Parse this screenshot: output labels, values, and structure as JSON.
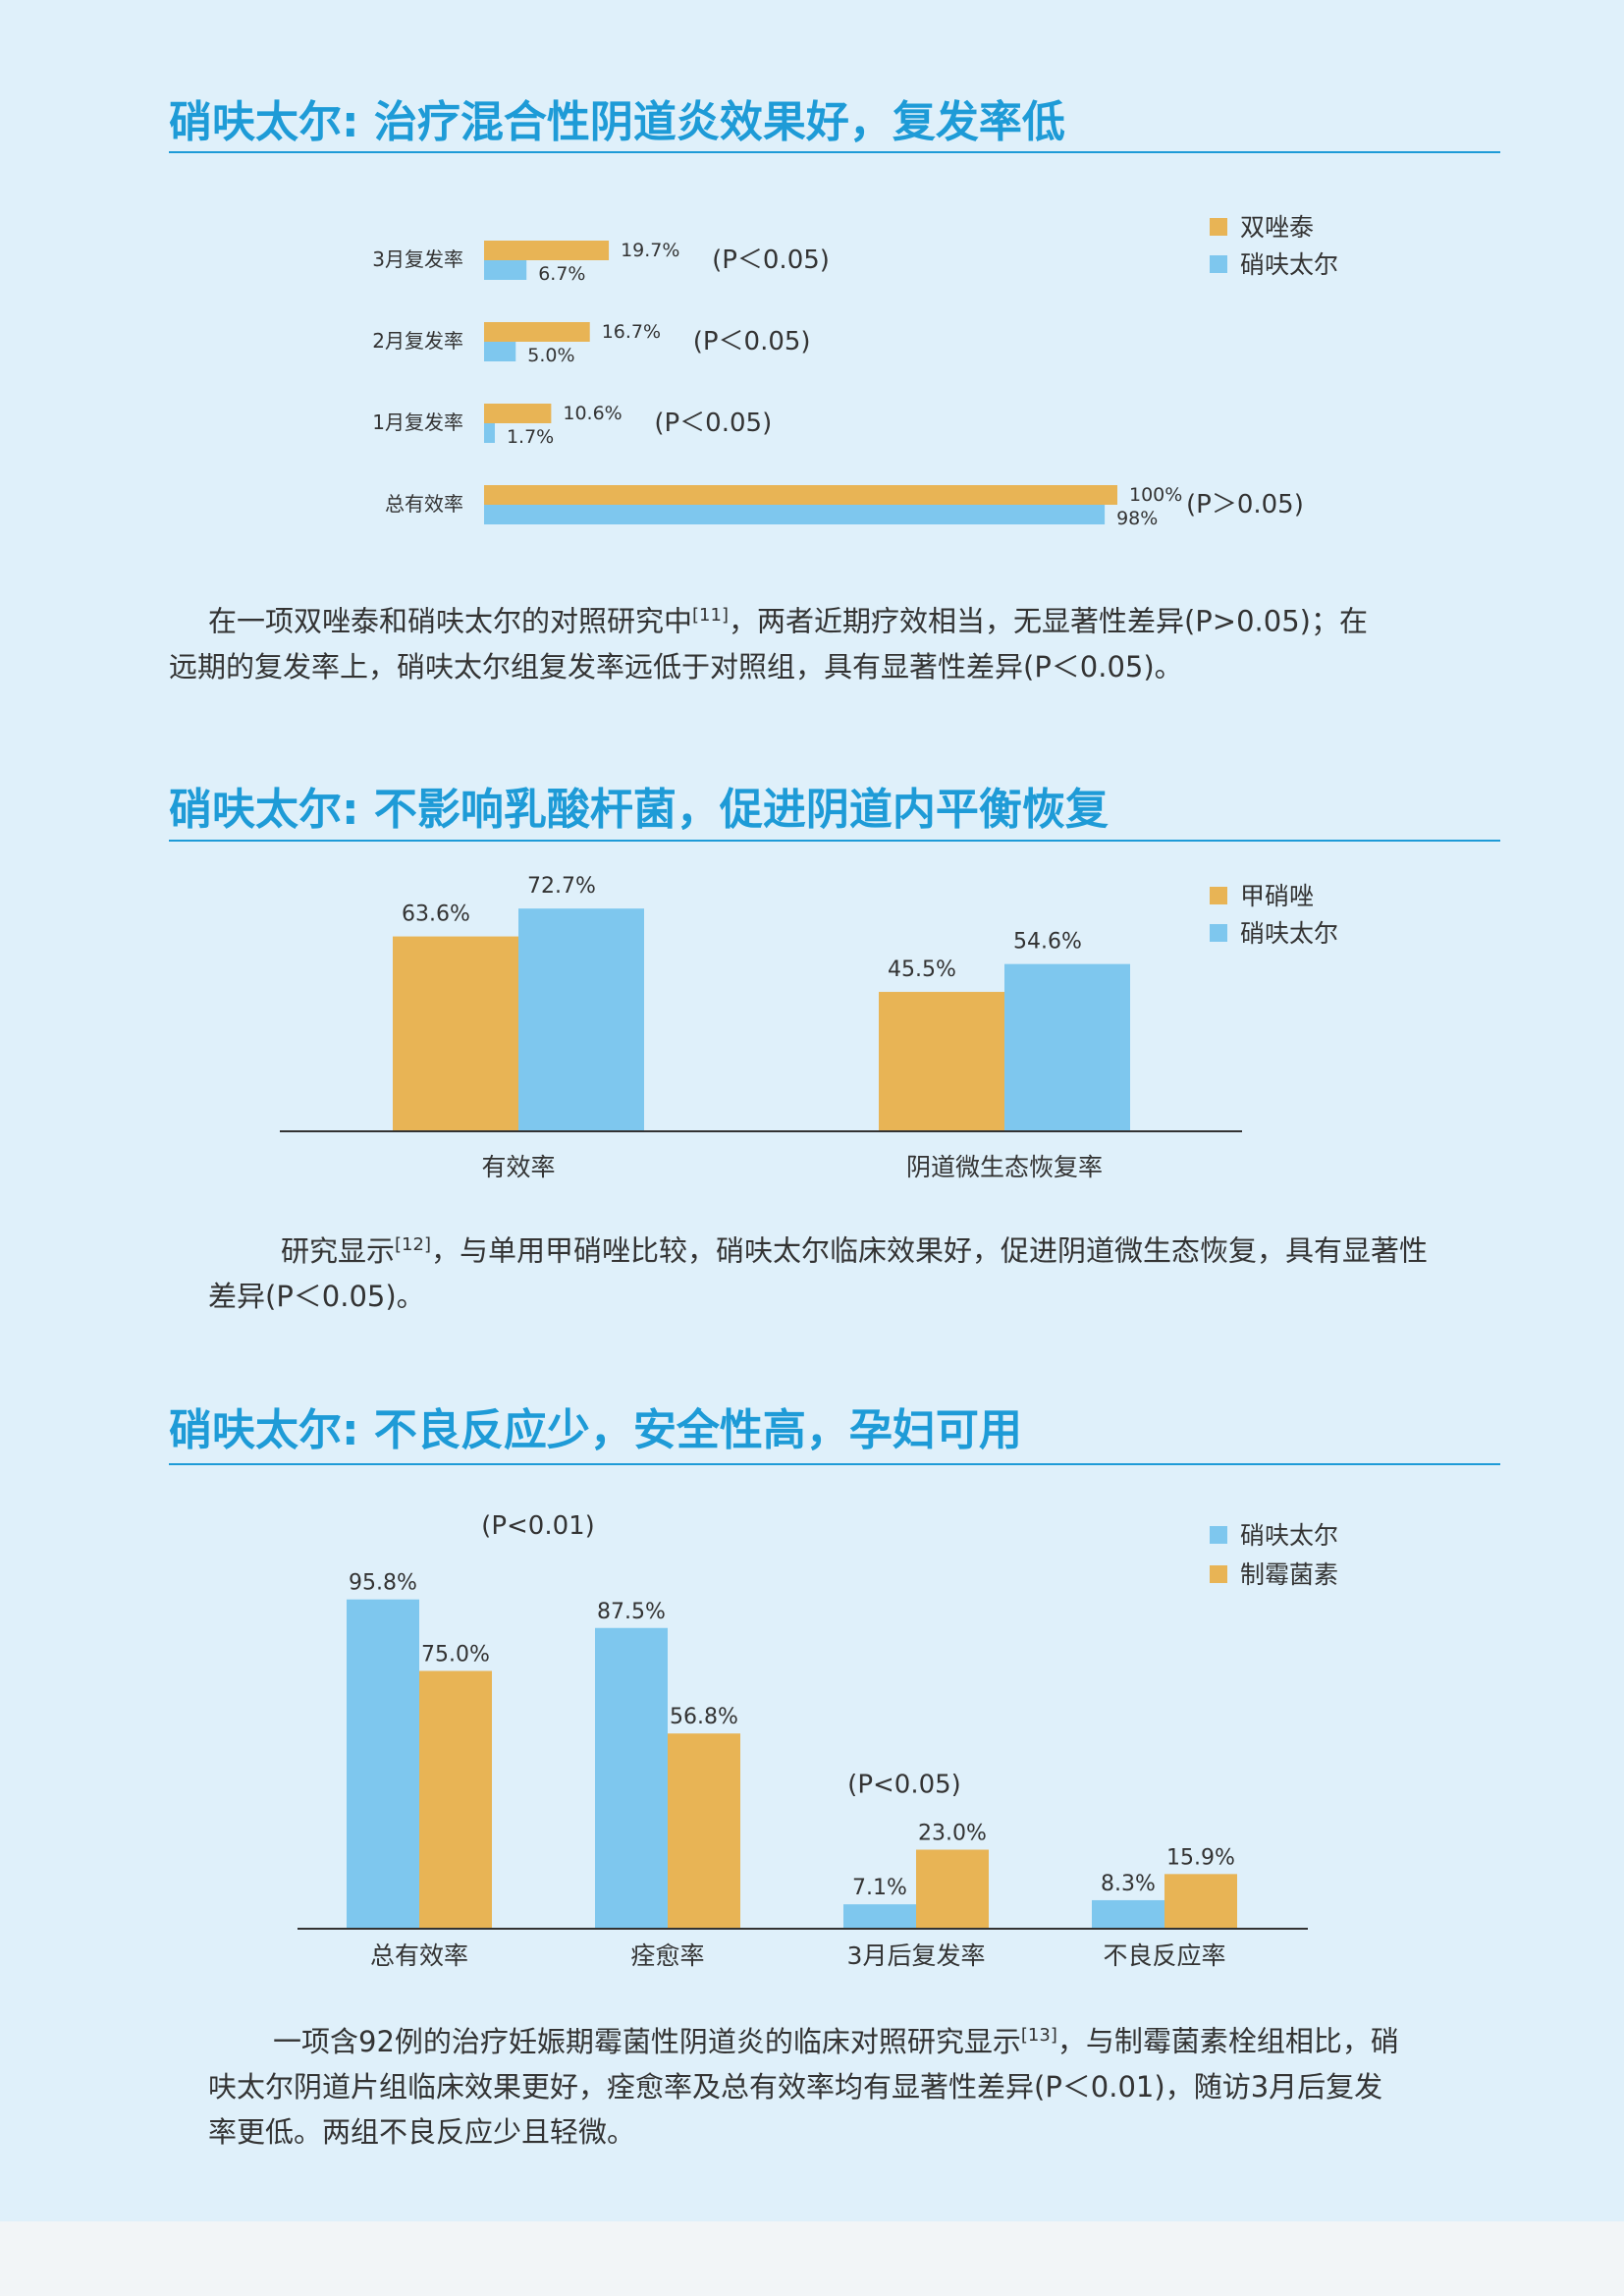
{
  "sections": [
    {
      "title": "硝呋太尔: 治疗混合性阴道炎效果好，复发率低",
      "paragraph": {
        "line1_before": "在一项双唑泰和硝呋太尔的对照研究中",
        "ref": "[11]",
        "line1_after": "，两者近期疗效相当，无显著性差异(P>0.05)；在",
        "line2": "远期的复发率上，硝呋太尔组复发率远低于对照组，具有显著性差异(P＜0.05)。"
      }
    },
    {
      "title": "硝呋太尔: 不影响乳酸杆菌，促进阴道内平衡恢复",
      "paragraph": {
        "line1_before": "研究显示",
        "ref": "[12]",
        "line1_after": "，与单用甲硝唑比较，硝呋太尔临床效果好，促进阴道微生态恢复，具有显著性",
        "line2": "差异(P＜0.05)。"
      }
    },
    {
      "title": "硝呋太尔: 不良反应少，安全性高，孕妇可用",
      "paragraph": {
        "line1_before": "一项含92例的治疗妊娠期霉菌性阴道炎的临床对照研究显示",
        "ref": "[13]",
        "line1_after": "，与制霉菌素栓组相比，硝",
        "line2": "呋太尔阴道片组临床效果更好，痊愈率及总有效率均有显著性差异(P＜0.01)，随访3月后复发",
        "line3": "率更低。两组不良反应少且轻微。"
      }
    }
  ],
  "colors": {
    "orange": "#e8b455",
    "blue": "#7ec7ee",
    "title": "#1e9bd7",
    "background": "#dff0fa"
  },
  "chart_data": [
    {
      "type": "bar",
      "orientation": "horizontal",
      "categories": [
        "3月复发率",
        "2月复发率",
        "1月复发率",
        "总有效率"
      ],
      "series": [
        {
          "name": "双唑泰",
          "color": "#e8b455",
          "values": [
            19.7,
            16.7,
            10.6,
            100
          ],
          "labels": [
            "19.7%",
            "16.7%",
            "10.6%",
            "100%"
          ]
        },
        {
          "name": "硝呋太尔",
          "color": "#7ec7ee",
          "values": [
            6.7,
            5.0,
            1.7,
            98
          ],
          "labels": [
            "6.7%",
            "5.0%",
            "1.7%",
            "98%"
          ]
        }
      ],
      "annotations": [
        "(P＜0.05)",
        "(P＜0.05)",
        "(P＜0.05)",
        "(P＞0.05)"
      ],
      "xlim": [
        0,
        100
      ],
      "legend": "top-right"
    },
    {
      "type": "bar",
      "categories": [
        "有效率",
        "阴道微生态恢复率"
      ],
      "series": [
        {
          "name": "甲硝唑",
          "color": "#e8b455",
          "values": [
            63.6,
            45.5
          ],
          "labels": [
            "63.6%",
            "45.5%"
          ]
        },
        {
          "name": "硝呋太尔",
          "color": "#7ec7ee",
          "values": [
            72.7,
            54.6
          ],
          "labels": [
            "72.7%",
            "54.6%"
          ]
        }
      ],
      "ylim": [
        0,
        100
      ],
      "legend": "top-right"
    },
    {
      "type": "bar",
      "categories": [
        "总有效率",
        "痊愈率",
        "3月后复发率",
        "不良反应率"
      ],
      "series": [
        {
          "name": "硝呋太尔",
          "color": "#7ec7ee",
          "values": [
            95.8,
            87.5,
            7.1,
            8.3
          ],
          "labels": [
            "95.8%",
            "87.5%",
            "7.1%",
            "8.3%"
          ]
        },
        {
          "name": "制霉菌素",
          "color": "#e8b455",
          "values": [
            75.0,
            56.8,
            23.0,
            15.9
          ],
          "labels": [
            "75.0%",
            "56.8%",
            "23.0%",
            "15.9%"
          ]
        }
      ],
      "annotations": [
        {
          "text": "(P<0.01)",
          "category": 0
        },
        {
          "text": "(P<0.05)",
          "category": 2
        }
      ],
      "ylim": [
        0,
        100
      ],
      "legend": "top-right"
    }
  ]
}
